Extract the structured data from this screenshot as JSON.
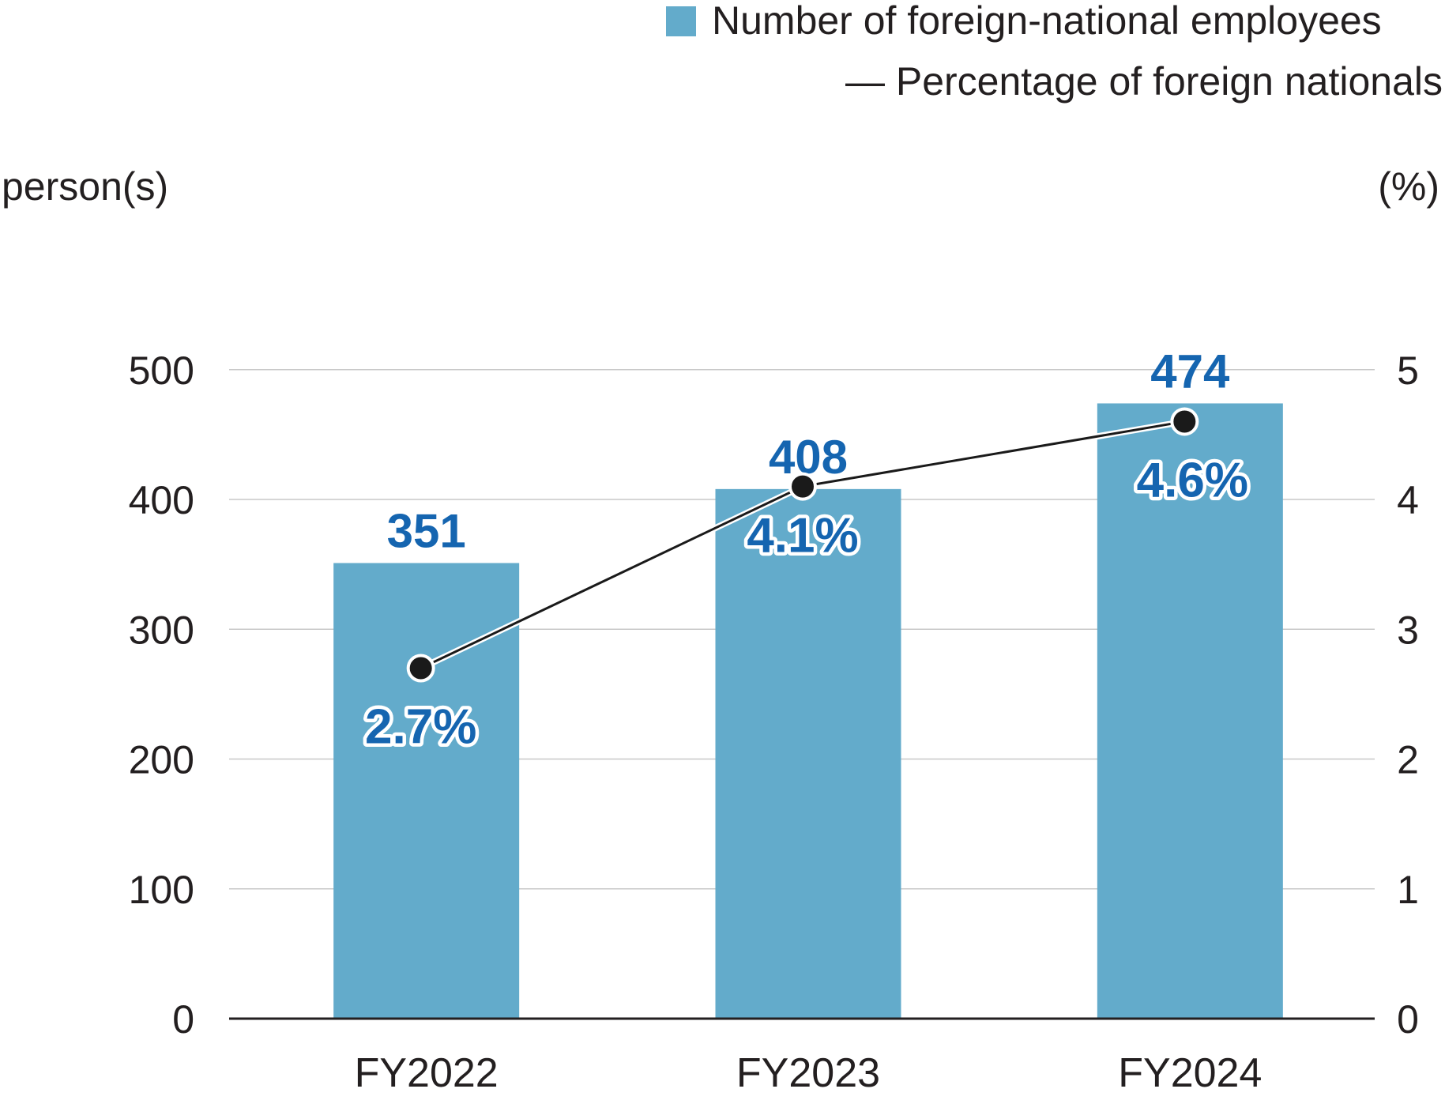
{
  "chart_data": {
    "type": "bar",
    "categories": [
      "FY2022",
      "FY2023",
      "FY2024"
    ],
    "series": [
      {
        "name": "Number of foreign-national employees",
        "kind": "bar",
        "axis": "left",
        "values": [
          351,
          408,
          474
        ],
        "labels": [
          "351",
          "408",
          "474"
        ]
      },
      {
        "name": "Percentage of foreign nationals",
        "kind": "line",
        "axis": "right",
        "values": [
          2.7,
          4.1,
          4.6
        ],
        "labels": [
          "2.7%",
          "4.1%",
          "4.6%"
        ]
      }
    ],
    "legend": {
      "bar_label": "Number of foreign-national employees",
      "line_label": "— Percentage of foreign nationals",
      "position": "top-right"
    },
    "y_left": {
      "label": "person(s)",
      "ticks": [
        "0",
        "100",
        "200",
        "300",
        "400",
        "500"
      ],
      "tick_values": [
        0,
        100,
        200,
        300,
        400,
        500
      ],
      "range": [
        0,
        530
      ]
    },
    "y_right": {
      "label": "(%)",
      "ticks": [
        "0",
        "1",
        "2",
        "3",
        "4",
        "5"
      ],
      "tick_values": [
        0,
        1,
        2,
        3,
        4,
        5
      ],
      "range": [
        0,
        5.3
      ]
    },
    "grid": true,
    "colors": {
      "bar": "#63abcb",
      "line": "#1a1a1a",
      "value_label": "#1565b0",
      "grid": "#c8c8c8",
      "axis": "#231f20",
      "text": "#231f20"
    }
  }
}
